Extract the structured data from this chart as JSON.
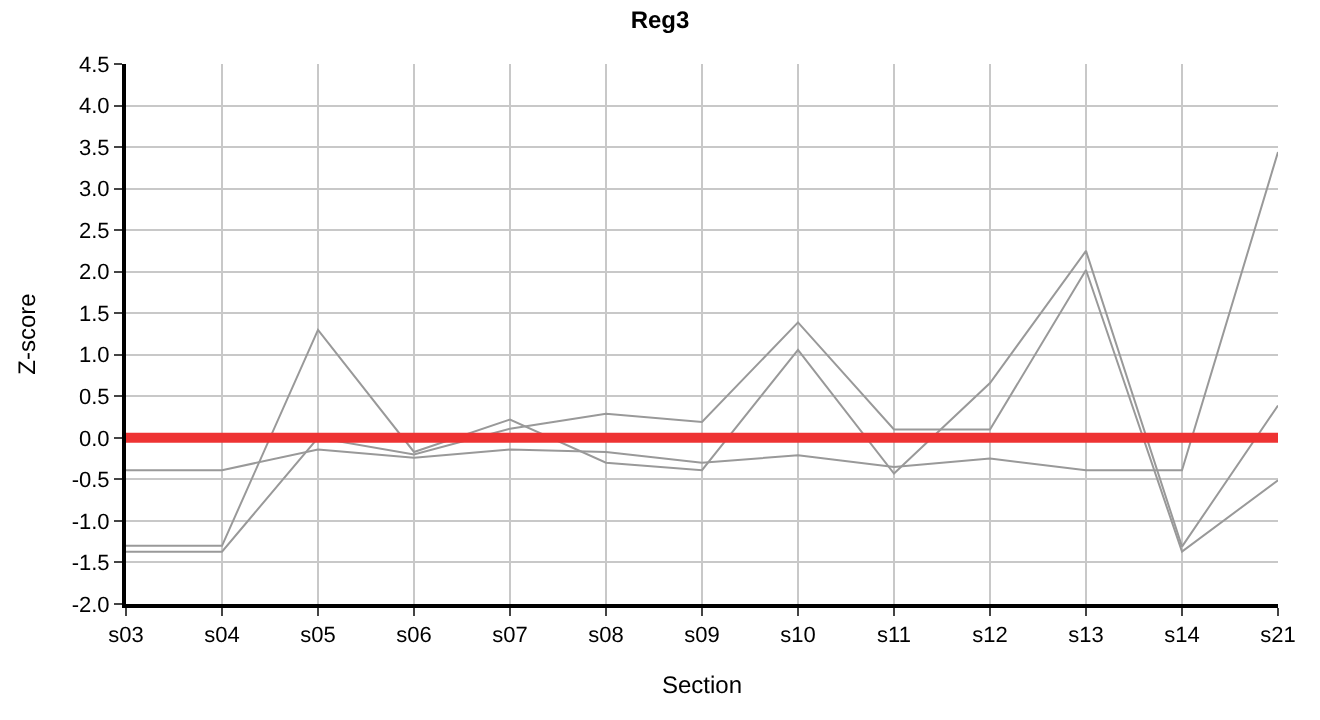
{
  "chart_data": {
    "type": "line",
    "title": "Reg3",
    "xlabel": "Section",
    "ylabel": "Z-score",
    "categories": [
      "s03",
      "s04",
      "s05",
      "s06",
      "s07",
      "s08",
      "s09",
      "s10",
      "s11",
      "s12",
      "s13",
      "s14",
      "s21"
    ],
    "series": [
      {
        "color": "#999999",
        "values": [
          -1.3,
          -1.3,
          1.3,
          -0.17,
          0.22,
          -0.3,
          -0.39,
          1.06,
          -0.43,
          0.66,
          2.25,
          -1.31,
          0.39
        ]
      },
      {
        "color": "#999999",
        "values": [
          -1.37,
          -1.37,
          0.0,
          -0.2,
          0.11,
          0.29,
          0.19,
          1.39,
          0.1,
          0.1,
          2.02,
          -1.37,
          -0.51
        ]
      },
      {
        "color": "#999999",
        "values": [
          -0.39,
          -0.39,
          -0.14,
          -0.24,
          -0.14,
          -0.17,
          -0.3,
          -0.21,
          -0.35,
          -0.25,
          -0.39,
          -0.39,
          3.44
        ]
      }
    ],
    "ylim": [
      -2,
      4.5
    ],
    "yticks": [
      {
        "value": -2,
        "label": "-2.0"
      },
      -1.5,
      {
        "value": -1,
        "label": "-1.0"
      },
      -0.5,
      {
        "value": 0,
        "label": "0.0"
      },
      0.5,
      {
        "value": 1,
        "label": "1.0"
      },
      1.5,
      {
        "value": 2,
        "label": "2.0"
      },
      2.5,
      {
        "value": 3,
        "label": "3.0"
      },
      3.5,
      {
        "value": 4,
        "label": "4.0"
      },
      4.5
    ],
    "ref_lines": [
      {
        "axis": "y",
        "value": 0,
        "color": "#ee3333"
      }
    ],
    "grid": true,
    "legend": false,
    "marker": "none",
    "line_style": "solid"
  }
}
